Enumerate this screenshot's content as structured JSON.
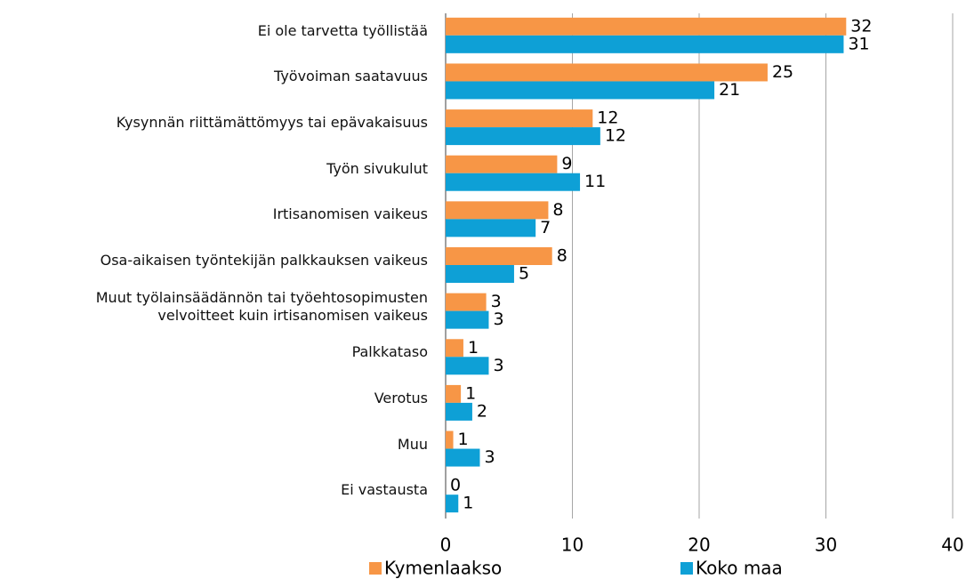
{
  "chart_data": {
    "type": "hbar",
    "categories": [
      "Ei ole tarvetta työllistää",
      "Työvoiman saatavuus",
      "Kysynnän riittämättömyys tai epävakaisuus",
      "Työn sivukulut",
      "Irtisanomisen vaikeus",
      "Osa-aikaisen työntekijän palkkauksen vaikeus",
      "Muut työlainsäädännön tai työehtosopimusten\nvelvoitteet kuin irtisanomisen vaikeus",
      "Palkkataso",
      "Verotus",
      "Muu",
      "Ei vastausta"
    ],
    "series": [
      {
        "name": "Kymenlaakso",
        "color": "#f79646",
        "values": [
          31.6,
          25.4,
          11.6,
          8.8,
          8.1,
          8.4,
          3.2,
          1.4,
          1.2,
          0.6,
          0
        ],
        "value_labels": [
          "32",
          "25",
          "12",
          "9",
          "8",
          "8",
          "3",
          "1",
          "1",
          "1",
          "0"
        ]
      },
      {
        "name": "Koko maa",
        "color": "#0ea0d6",
        "values": [
          31.4,
          21.2,
          12.2,
          10.6,
          7.1,
          5.4,
          3.4,
          3.4,
          2.1,
          2.7,
          1.0
        ],
        "value_labels": [
          "31",
          "21",
          "12",
          "11",
          "7",
          "5",
          "3",
          "3",
          "2",
          "3",
          "1"
        ]
      }
    ],
    "xlim": [
      0,
      40
    ],
    "xticks": [
      0,
      10,
      20,
      30,
      40
    ],
    "grid": true,
    "legend": "bottom"
  }
}
